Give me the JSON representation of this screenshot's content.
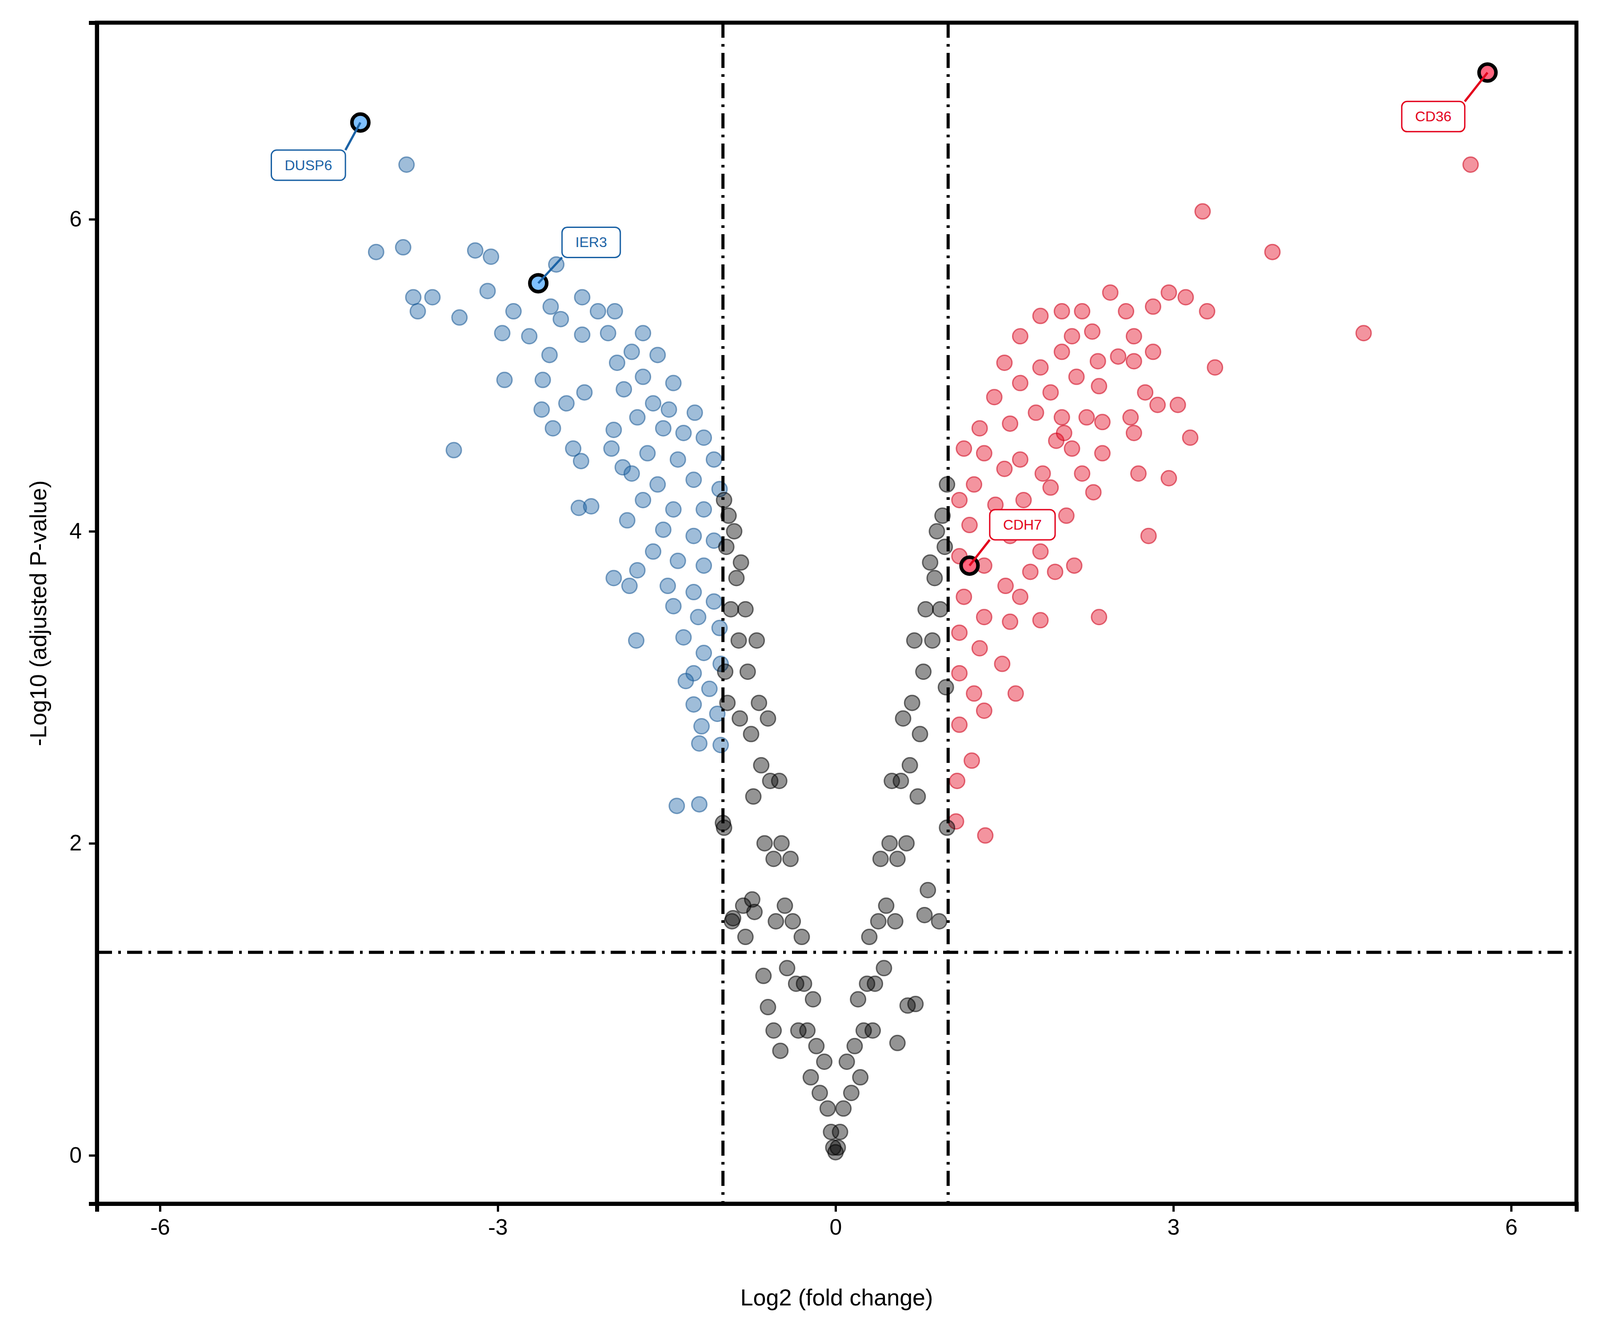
{
  "chart_data": {
    "type": "scatter",
    "x_label": "Log2 (fold change)",
    "y_label": "-Log10 (adjusted P-value)",
    "xlim": [
      -6.56,
      6.58
    ],
    "ylim": [
      -0.31,
      7.26
    ],
    "xticks": [
      -6,
      -3,
      0,
      3,
      6
    ],
    "yticks": [
      0,
      2,
      4,
      6
    ],
    "grid": false,
    "vlines": [
      -1,
      1
    ],
    "hlines": [
      1.301
    ],
    "series": [
      {
        "color": "#1b62a5",
        "marker": "circle",
        "x": [
          -3.81,
          -4.08,
          -3.84,
          -3.2,
          -3.06,
          -3.75,
          -3.58,
          -3.71,
          -3.34,
          -3.09,
          -2.86,
          -2.96,
          -2.72,
          -2.94,
          -3.39,
          -2.48,
          -2.53,
          -2.25,
          -2.44,
          -2.11,
          -1.96,
          -2.02,
          -2.25,
          -2.54,
          -2.6,
          -2.61,
          -2.39,
          -2.23,
          -2.51,
          -2.33,
          -2.26,
          -2.28,
          -2.17,
          -1.97,
          -1.89,
          -1.97,
          -1.83,
          -1.77,
          -1.71,
          -1.81,
          -1.58,
          -1.94,
          -1.71,
          -1.88,
          -1.44,
          -1.62,
          -1.48,
          -1.25,
          -1.76,
          -1.53,
          -1.35,
          -1.17,
          -1.99,
          -1.67,
          -1.4,
          -1.08,
          -1.81,
          -1.58,
          -1.26,
          -1.03,
          -1.71,
          -1.44,
          -1.17,
          -1.85,
          -1.53,
          -1.26,
          -1.08,
          -1.62,
          -1.4,
          -1.17,
          -1.76,
          -1.49,
          -1.26,
          -1.08,
          -1.44,
          -1.22,
          -1.03,
          -1.35,
          -1.17,
          -1.02,
          -1.26,
          -1.12,
          -1.33,
          -1.19,
          -1.05,
          -1.21,
          -1.02,
          -1.41,
          -1.21,
          -1.26
        ],
        "y": [
          6.35,
          5.79,
          5.82,
          5.8,
          5.76,
          5.5,
          5.5,
          5.41,
          5.37,
          5.54,
          5.41,
          5.27,
          5.25,
          4.97,
          4.52,
          5.71,
          5.44,
          5.5,
          5.36,
          5.41,
          5.41,
          5.27,
          5.26,
          5.13,
          4.97,
          4.78,
          4.82,
          4.89,
          4.66,
          4.53,
          4.45,
          4.15,
          4.16,
          4.65,
          4.41,
          3.7,
          3.65,
          3.3,
          5.27,
          5.15,
          5.13,
          5.08,
          4.99,
          4.91,
          4.95,
          4.82,
          4.78,
          4.76,
          4.73,
          4.66,
          4.63,
          4.6,
          4.53,
          4.5,
          4.46,
          4.46,
          4.37,
          4.3,
          4.33,
          4.27,
          4.2,
          4.14,
          4.14,
          4.07,
          4.01,
          3.97,
          3.94,
          3.87,
          3.81,
          3.78,
          3.75,
          3.65,
          3.61,
          3.55,
          3.52,
          3.45,
          3.38,
          3.32,
          3.22,
          3.15,
          3.09,
          2.99,
          3.04,
          2.75,
          2.83,
          2.64,
          2.63,
          2.24,
          2.25,
          2.89
        ]
      },
      {
        "color": "#e3001b",
        "marker": "circle",
        "x": [
          5.64,
          3.26,
          3.88,
          4.69,
          2.44,
          2.96,
          3.11,
          3.3,
          3.37,
          3.15,
          2.96,
          2.78,
          2.34,
          1.6,
          1.33,
          2.58,
          2.82,
          2.19,
          2.01,
          1.82,
          1.64,
          1.5,
          2.28,
          2.1,
          2.65,
          2.51,
          2.82,
          2.33,
          2.01,
          1.82,
          2.65,
          2.14,
          2.34,
          1.64,
          1.41,
          1.91,
          2.75,
          2.86,
          3.04,
          2.62,
          2.23,
          2.01,
          1.78,
          1.55,
          1.28,
          2.37,
          2.65,
          1.96,
          1.14,
          1.32,
          2.1,
          2.37,
          1.64,
          1.5,
          1.84,
          2.19,
          2.69,
          1.23,
          1.91,
          2.29,
          1.1,
          1.42,
          1.67,
          2.05,
          1.19,
          1.55,
          1.82,
          1.1,
          1.32,
          1.73,
          2.12,
          1.95,
          1.51,
          1.14,
          1.64,
          1.32,
          1.82,
          1.55,
          1.1,
          1.28,
          1.48,
          1.1,
          1.23,
          1.32,
          1.1,
          1.21,
          1.08,
          1.07,
          2.03
        ],
        "y": [
          6.35,
          6.05,
          5.79,
          5.27,
          5.53,
          5.53,
          5.5,
          5.41,
          5.05,
          4.6,
          4.34,
          3.97,
          3.45,
          2.96,
          2.05,
          5.41,
          5.44,
          5.41,
          5.41,
          5.38,
          5.25,
          5.08,
          5.28,
          5.25,
          5.25,
          5.12,
          5.15,
          5.09,
          5.15,
          5.05,
          5.09,
          4.99,
          4.93,
          4.95,
          4.86,
          4.89,
          4.89,
          4.81,
          4.81,
          4.73,
          4.73,
          4.73,
          4.76,
          4.69,
          4.66,
          4.7,
          4.63,
          4.58,
          4.53,
          4.5,
          4.53,
          4.5,
          4.46,
          4.4,
          4.37,
          4.37,
          4.37,
          4.3,
          4.28,
          4.25,
          4.2,
          4.17,
          4.2,
          4.1,
          4.04,
          3.97,
          3.87,
          3.84,
          3.78,
          3.74,
          3.78,
          3.74,
          3.65,
          3.58,
          3.58,
          3.45,
          3.43,
          3.42,
          3.35,
          3.25,
          3.15,
          3.09,
          2.96,
          2.85,
          2.76,
          2.53,
          2.4,
          2.14,
          4.63
        ]
      },
      {
        "color": "#000000",
        "marker": "circle",
        "x": [
          -0.99,
          -0.97,
          -0.95,
          -0.93,
          -0.98,
          -0.96,
          -0.99,
          -0.92,
          -0.9,
          -0.88,
          -0.86,
          -0.85,
          -0.82,
          -0.8,
          -0.84,
          -0.8,
          -0.78,
          -0.75,
          -0.73,
          -0.7,
          -0.68,
          -0.66,
          -0.63,
          -0.6,
          -0.58,
          -0.55,
          -0.53,
          -0.5,
          -0.48,
          -0.45,
          -0.43,
          -0.4,
          -0.38,
          -0.35,
          -0.33,
          -0.3,
          -0.28,
          -0.25,
          -0.22,
          -0.2,
          -0.17,
          -0.14,
          -0.1,
          -0.07,
          -0.04,
          -0.55,
          -0.6,
          -1.0,
          -0.91,
          -0.74,
          -0.72,
          -0.64,
          -0.49,
          0.04,
          0.07,
          0.1,
          0.14,
          0.17,
          0.2,
          0.22,
          0.25,
          0.28,
          0.3,
          0.33,
          0.35,
          0.38,
          0.4,
          0.43,
          0.45,
          0.48,
          0.5,
          0.53,
          0.55,
          0.58,
          0.6,
          0.63,
          0.66,
          0.68,
          0.7,
          0.73,
          0.75,
          0.78,
          0.8,
          0.82,
          0.84,
          0.86,
          0.88,
          0.9,
          0.92,
          0.93,
          0.95,
          0.97,
          0.99,
          0.98,
          0.99,
          0.71,
          0.64,
          0.55,
          0.79,
          0.0,
          -0.02,
          0.02
        ],
        "y": [
          4.2,
          3.9,
          4.1,
          3.5,
          3.1,
          2.9,
          2.1,
          1.5,
          4.0,
          3.7,
          3.3,
          2.8,
          1.6,
          1.4,
          3.8,
          3.5,
          3.1,
          2.7,
          2.3,
          3.3,
          2.9,
          2.5,
          2.0,
          2.8,
          2.4,
          1.9,
          1.5,
          2.4,
          2.0,
          1.6,
          1.2,
          1.9,
          1.5,
          1.1,
          0.8,
          1.4,
          1.1,
          0.8,
          0.5,
          1.0,
          0.7,
          0.4,
          0.6,
          0.3,
          0.15,
          0.8,
          0.95,
          2.13,
          1.52,
          1.64,
          1.56,
          1.15,
          0.67,
          0.15,
          0.3,
          0.6,
          0.4,
          0.7,
          1.0,
          0.5,
          0.8,
          1.1,
          1.4,
          0.8,
          1.1,
          1.5,
          1.9,
          1.2,
          1.6,
          2.0,
          2.4,
          1.5,
          1.9,
          2.4,
          2.8,
          2.0,
          2.5,
          2.9,
          3.3,
          2.3,
          2.7,
          3.1,
          3.5,
          1.7,
          3.8,
          3.3,
          3.7,
          4.0,
          1.5,
          3.5,
          4.1,
          3.9,
          4.3,
          3.0,
          2.1,
          0.97,
          0.96,
          0.72,
          1.54,
          0.02,
          0.05,
          0.05
        ]
      }
    ],
    "annotations": [
      {
        "text": "DUSP6",
        "x": -4.22,
        "y": 6.62,
        "color": "#1b62a5"
      },
      {
        "text": "IER3",
        "x": -2.64,
        "y": 5.59,
        "color": "#1b62a5"
      },
      {
        "text": "CD36",
        "x": 5.79,
        "y": 6.94,
        "color": "#e3001b"
      },
      {
        "text": "CDH7",
        "x": 1.19,
        "y": 3.78,
        "color": "#e3001b"
      }
    ]
  }
}
